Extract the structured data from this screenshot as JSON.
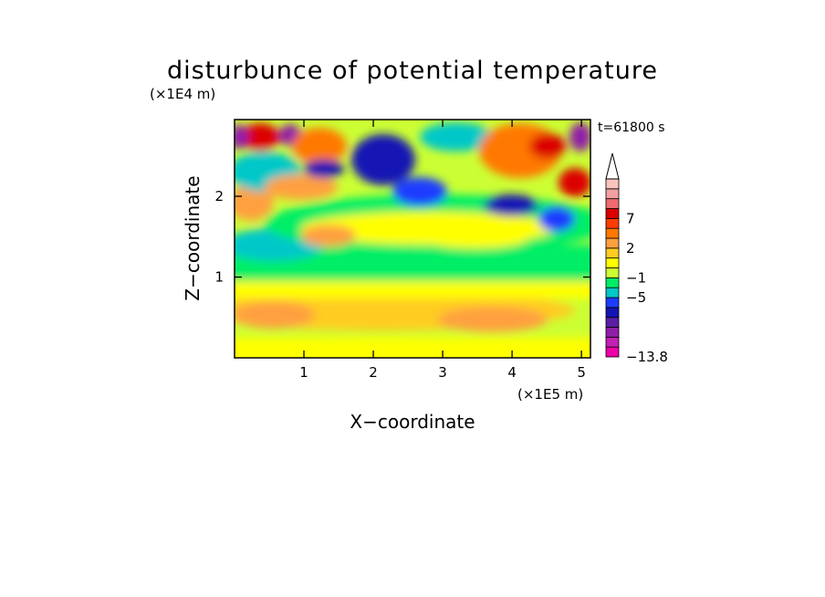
{
  "chart_data": {
    "type": "heatmap",
    "title": "disturbunce of potential temperature",
    "time_label": "t=61800 s",
    "xlabel": "X−coordinate",
    "ylabel": "Z−coordinate",
    "x_unit": "(×1E5 m)",
    "y_unit": "(×1E4 m)",
    "xlim": [
      0,
      5.13
    ],
    "ylim": [
      0,
      2.95
    ],
    "x_ticks": [
      "1",
      "2",
      "3",
      "4",
      "5"
    ],
    "y_ticks": [
      "1",
      "2"
    ],
    "colorbar": {
      "colors": [
        "#ee00aa",
        "#c41fb4",
        "#8f1fa8",
        "#5b1fa6",
        "#1414b4",
        "#1e3cff",
        "#00c8c8",
        "#00ee66",
        "#ccff33",
        "#ffff00",
        "#ffcc22",
        "#ffa040",
        "#ff7800",
        "#ff3c00",
        "#dc0000",
        "#ee6a70",
        "#f3a0a0",
        "#f8c4be"
      ],
      "labels": [
        {
          "text": "−13.8",
          "level": 0
        },
        {
          "text": "−5",
          "level": 6
        },
        {
          "text": "−1",
          "level": 8
        },
        {
          "text": "2",
          "level": 11
        },
        {
          "text": "7",
          "level": 14
        }
      ],
      "extend": "max"
    }
  }
}
